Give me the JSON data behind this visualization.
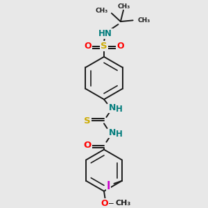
{
  "bg_color": "#e8e8e8",
  "bond_color": "#1a1a1a",
  "colors": {
    "N": "#007b7b",
    "O": "#ff0000",
    "S": "#ccaa00",
    "I": "#cc00cc",
    "C": "#1a1a1a",
    "tBu": "#1a1a1a"
  },
  "figsize": [
    3.0,
    3.0
  ],
  "dpi": 100,
  "xlim": [
    -2.5,
    2.5
  ],
  "ylim": [
    -4.8,
    3.8
  ]
}
